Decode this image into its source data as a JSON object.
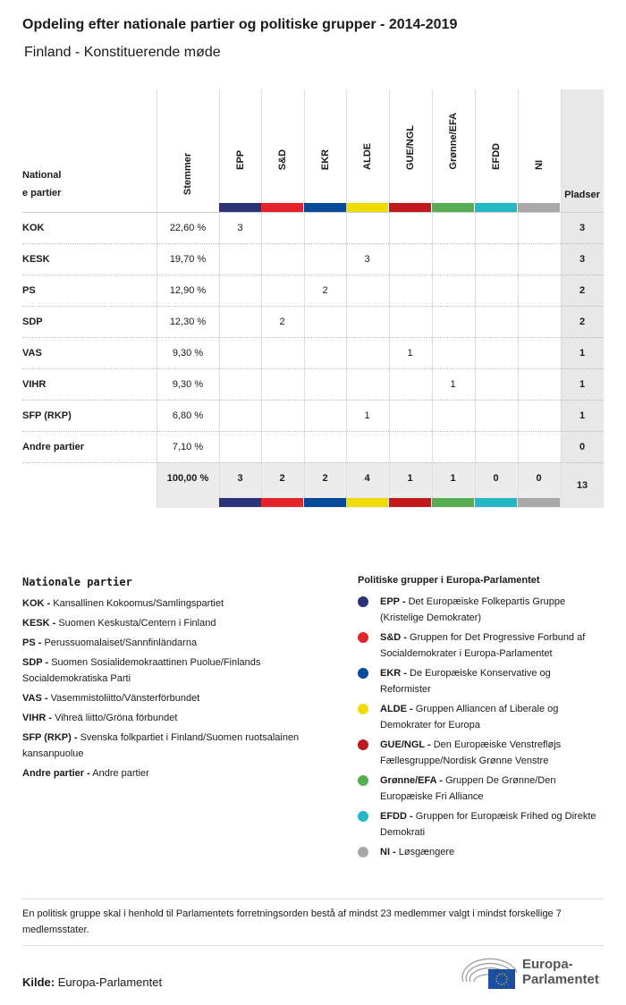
{
  "title": "Opdeling efter nationale partier og politiske grupper - 2014-2019",
  "subtitle": "Finland - Konstituerende møde",
  "table": {
    "party_header": "National\ne partier",
    "votes_header": "Stemmer",
    "seats_header": "Pladser",
    "groups": [
      {
        "label": "EPP",
        "color": "#2a3377"
      },
      {
        "label": "S&D",
        "color": "#e3242b"
      },
      {
        "label": "EKR",
        "color": "#004a99"
      },
      {
        "label": "ALDE",
        "color": "#f0dc00"
      },
      {
        "label": "GUE/NGL",
        "color": "#c0191e"
      },
      {
        "label": "Grønne/EFA",
        "color": "#57ad52"
      },
      {
        "label": "EFDD",
        "color": "#24b7c4"
      },
      {
        "label": "NI",
        "color": "#a8a8a8"
      }
    ],
    "rows": [
      {
        "party": "KOK",
        "votes": "22,60 %",
        "cells": [
          "3",
          "",
          "",
          "",
          "",
          "",
          "",
          ""
        ],
        "seats": "3"
      },
      {
        "party": "KESK",
        "votes": "19,70 %",
        "cells": [
          "",
          "",
          "",
          "3",
          "",
          "",
          "",
          ""
        ],
        "seats": "3"
      },
      {
        "party": "PS",
        "votes": "12,90 %",
        "cells": [
          "",
          "",
          "2",
          "",
          "",
          "",
          "",
          ""
        ],
        "seats": "2"
      },
      {
        "party": "SDP",
        "votes": "12,30 %",
        "cells": [
          "",
          "2",
          "",
          "",
          "",
          "",
          "",
          ""
        ],
        "seats": "2"
      },
      {
        "party": "VAS",
        "votes": "9,30 %",
        "cells": [
          "",
          "",
          "",
          "",
          "1",
          "",
          "",
          ""
        ],
        "seats": "1"
      },
      {
        "party": "VIHR",
        "votes": "9,30 %",
        "cells": [
          "",
          "",
          "",
          "",
          "",
          "1",
          "",
          ""
        ],
        "seats": "1"
      },
      {
        "party": "SFP (RKP)",
        "votes": "6,80 %",
        "cells": [
          "",
          "",
          "",
          "1",
          "",
          "",
          "",
          ""
        ],
        "seats": "1"
      },
      {
        "party": "Andre partier",
        "votes": "7,10 %",
        "cells": [
          "",
          "",
          "",
          "",
          "",
          "",
          "",
          ""
        ],
        "seats": "0"
      }
    ],
    "totals": {
      "votes": "100,00 %",
      "cells": [
        "3",
        "2",
        "2",
        "4",
        "1",
        "1",
        "0",
        "0"
      ],
      "seats": "13"
    }
  },
  "national_legend": {
    "title": "Nationale partier",
    "items": [
      {
        "abbr": "KOK -",
        "name": "Kansallinen Kokoomus/Samlingspartiet"
      },
      {
        "abbr": "KESK -",
        "name": "Suomen Keskusta/Centern i Finland"
      },
      {
        "abbr": "PS -",
        "name": "Perussuomalaiset/Sannfinländarna"
      },
      {
        "abbr": "SDP -",
        "name": "Suomen Sosialidemokraattinen Puolue/Finlands Socialdemokratiska Parti"
      },
      {
        "abbr": "VAS -",
        "name": "Vasemmistoliitto/Vänsterförbundet"
      },
      {
        "abbr": "VIHR -",
        "name": "Vihreä liitto/Gröna förbundet"
      },
      {
        "abbr": "SFP (RKP) -",
        "name": "Svenska folkpartiet i Finland/Suomen ruotsalainen kansanpuolue"
      },
      {
        "abbr": "Andre partier -",
        "name": "Andre partier"
      }
    ]
  },
  "group_legend": {
    "title": "Politiske grupper i Europa-Parlamentet",
    "items": [
      {
        "abbr": "EPP -",
        "name": "Det Europæiske Folkepartis Gruppe (Kristelige Demokrater)",
        "color": "#2a3377"
      },
      {
        "abbr": "S&D -",
        "name": "Gruppen for Det Progressive Forbund af Socialdemokrater i Europa-Parlamentet",
        "color": "#e3242b"
      },
      {
        "abbr": "EKR -",
        "name": "De Europæiske Konservative og Reformister",
        "color": "#004a99"
      },
      {
        "abbr": "ALDE -",
        "name": "Gruppen Alliancen af Liberale og Demokrater for Europa",
        "color": "#f0dc00"
      },
      {
        "abbr": "GUE/NGL -",
        "name": "Den Europæiske Venstrefløjs Fællesgruppe/Nordisk Grønne Venstre",
        "color": "#c0191e"
      },
      {
        "abbr": "Grønne/EFA -",
        "name": "Gruppen De Grønne/Den Europæiske Fri Alliance",
        "color": "#57ad52"
      },
      {
        "abbr": "EFDD -",
        "name": "Gruppen for Europæisk Frihed og Direkte Demokrati",
        "color": "#24b7c4"
      },
      {
        "abbr": "NI -",
        "name": "Løsgængere",
        "color": "#a8a8a8"
      }
    ]
  },
  "note": "En politisk gruppe skal i henhold til Parlamentets forretningsorden bestå af mindst 23 medlemmer valgt i mindst forskellige 7 medlemsstater.",
  "source": {
    "label": "Kilde:",
    "value": "Europa-Parlamentet"
  },
  "logo": {
    "text": "Europa-\nParlamentet"
  }
}
